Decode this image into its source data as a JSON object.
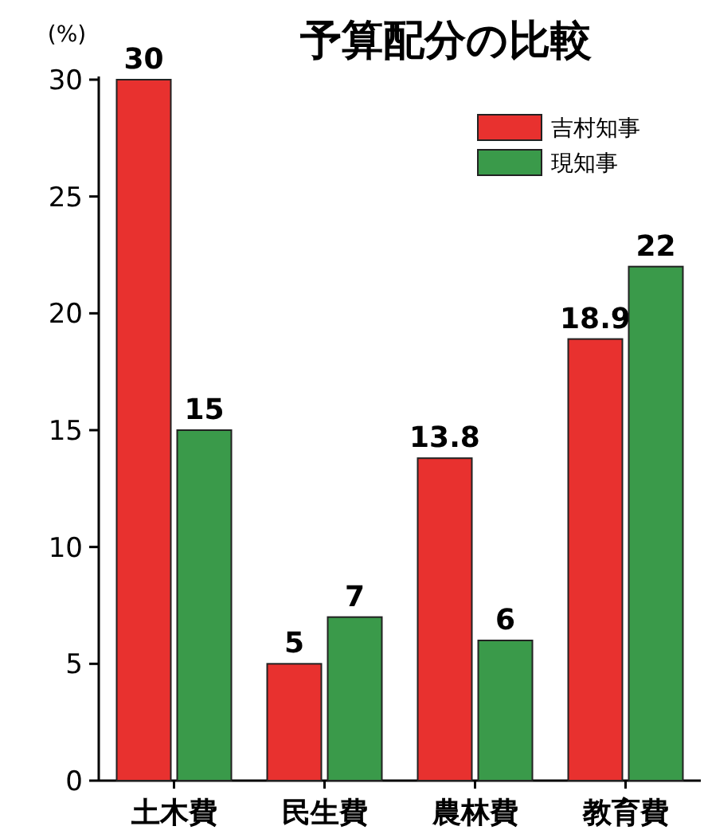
{
  "chart_data": {
    "type": "bar",
    "title": "予算配分の比較",
    "ylabel": "(%)",
    "categories": [
      "土木費",
      "民生費",
      "農林費",
      "教育費"
    ],
    "series": [
      {
        "name": "吉村知事",
        "color": "#e8312f",
        "values": [
          30,
          5,
          13.8,
          18.9
        ]
      },
      {
        "name": "現知事",
        "color": "#3a9a4a",
        "values": [
          15,
          7,
          6,
          22
        ]
      }
    ],
    "ylim": [
      0,
      30
    ],
    "yticks": [
      0,
      5,
      10,
      15,
      20,
      25,
      30
    ],
    "data_labels": true,
    "legend": "top right",
    "grid": false
  }
}
